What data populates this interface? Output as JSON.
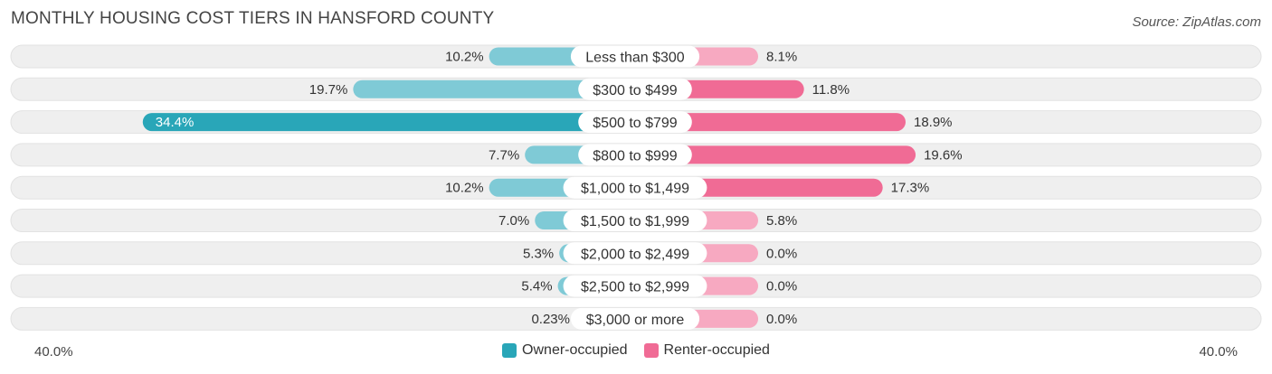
{
  "header": {
    "title": "MONTHLY HOUSING COST TIERS IN HANSFORD COUNTY",
    "source": "Source: ZipAtlas.com"
  },
  "colors": {
    "owner_strong": "#29a6b8",
    "owner_light": "#7fcad6",
    "renter_strong": "#f06b95",
    "renter_light": "#f7a9c1",
    "row_bg": "#efefef"
  },
  "chart_data": {
    "type": "bar",
    "orientation": "horizontal-diverging",
    "title": "MONTHLY HOUSING COST TIERS IN HANSFORD COUNTY",
    "categories": [
      "Less than $300",
      "$300 to $499",
      "$500 to $799",
      "$800 to $999",
      "$1,000 to $1,499",
      "$1,500 to $1,999",
      "$2,000 to $2,499",
      "$2,500 to $2,999",
      "$3,000 or more"
    ],
    "series": [
      {
        "name": "Owner-occupied",
        "values": [
          10.2,
          19.7,
          34.4,
          7.7,
          10.2,
          7.0,
          5.3,
          5.4,
          0.23
        ],
        "labels": [
          "10.2%",
          "19.7%",
          "34.4%",
          "7.7%",
          "10.2%",
          "7.0%",
          "5.3%",
          "5.4%",
          "0.23%"
        ]
      },
      {
        "name": "Renter-occupied",
        "values": [
          8.1,
          11.8,
          18.9,
          19.6,
          17.3,
          5.8,
          0.0,
          0.0,
          0.0
        ],
        "labels": [
          "8.1%",
          "11.8%",
          "18.9%",
          "19.6%",
          "17.3%",
          "5.8%",
          "0.0%",
          "0.0%",
          "0.0%"
        ]
      }
    ],
    "xlim": [
      -40,
      40
    ],
    "axis_labels": {
      "left": "40.0%",
      "right": "40.0%"
    },
    "legend_position": "bottom-center"
  },
  "legend": {
    "owner": "Owner-occupied",
    "renter": "Renter-occupied"
  }
}
